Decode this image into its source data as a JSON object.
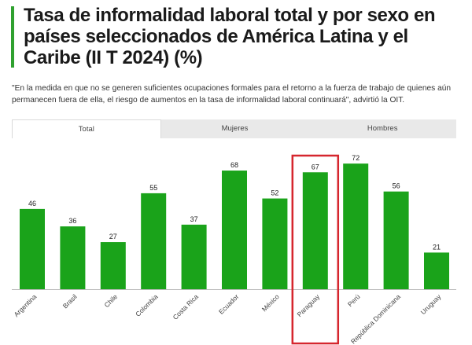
{
  "header": {
    "title": "Tasa de informalidad laboral total y por sexo en países seleccionados de América Latina y el Caribe (II T 2024) (%)",
    "accent_color": "#2fa12f"
  },
  "quote": "\"En la medida en que no se generen suficientes ocupaciones formales para el retorno a la fuerza de trabajo de quienes aún permanecen fuera de ella, el riesgo de aumentos en la tasa de informalidad laboral continuará\", advirtió la OIT.",
  "tabs": [
    {
      "label": "Total",
      "active": true
    },
    {
      "label": "Mujeres",
      "active": false
    },
    {
      "label": "Hombres",
      "active": false
    }
  ],
  "chart_data": {
    "type": "bar",
    "categories": [
      "Argentina",
      "Brasil",
      "Chile",
      "Colombia",
      "Costa Rica",
      "Ecuador",
      "México",
      "Paraguay",
      "Perú",
      "República Dominicana",
      "Uruguay"
    ],
    "values": [
      46,
      36,
      27,
      55,
      37,
      68,
      52,
      67,
      72,
      56,
      21
    ],
    "highlighted_category": "Paraguay",
    "ylim": [
      0,
      75
    ],
    "bar_color": "#1aa31a",
    "highlight_color": "#d6262e",
    "grid": false
  }
}
